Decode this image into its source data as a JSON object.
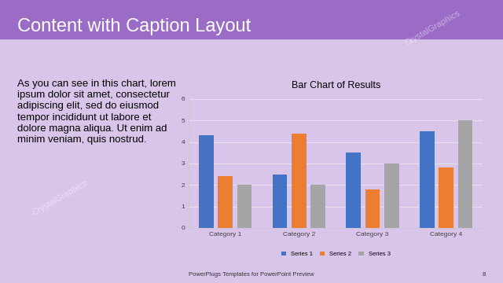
{
  "slide": {
    "title": "Content with Caption Layout",
    "caption": "As you can see in this chart, lorem ipsum dolor sit amet, consectetur adipiscing elit, sed do eiusmod tempor incididunt ut labore et dolore magna aliqua. Ut enim ad minim veniam, quis nostrud.",
    "footer": "PowerPlugs Templates for PowerPoint Preview",
    "page_number": "8",
    "watermark": "CrystalGraphics"
  },
  "chart_data": {
    "type": "bar",
    "title": "Bar Chart of Results",
    "categories": [
      "Category 1",
      "Category 2",
      "Category 3",
      "Category 4"
    ],
    "series": [
      {
        "name": "Series 1",
        "color": "#4472c4",
        "values": [
          4.3,
          2.5,
          3.5,
          4.5
        ]
      },
      {
        "name": "Series 2",
        "color": "#ed7d31",
        "values": [
          2.4,
          4.4,
          1.8,
          2.8
        ]
      },
      {
        "name": "Series 3",
        "color": "#a5a5a5",
        "values": [
          2,
          2,
          3,
          5
        ]
      }
    ],
    "ylim": [
      0,
      6
    ],
    "yticks": [
      0,
      1,
      2,
      3,
      4,
      5,
      6
    ],
    "grid": true,
    "legend": "lower center"
  }
}
